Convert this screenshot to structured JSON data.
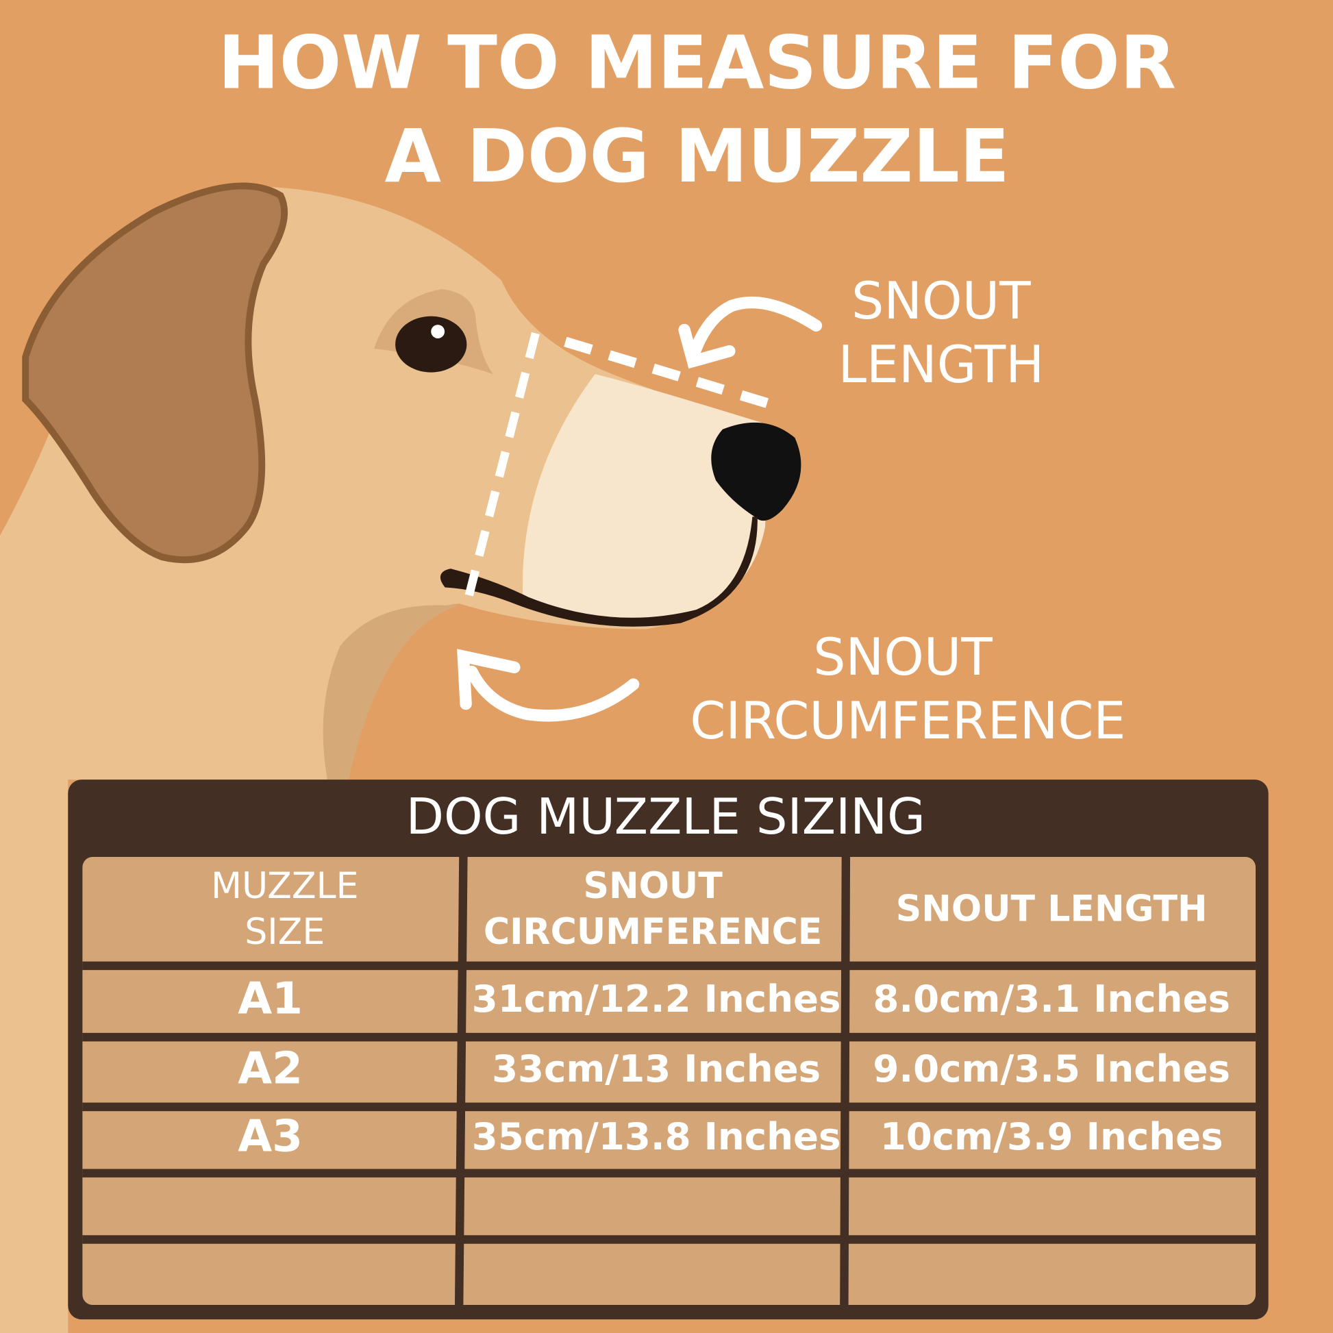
{
  "title": [
    "HOW TO MEASURE FOR",
    "A DOG MUZZLE"
  ],
  "labels": {
    "snout_length": [
      "SNOUT",
      "LENGTH"
    ],
    "snout_circumference": [
      "SNOUT",
      "CIRCUMFERENCE"
    ]
  },
  "table": {
    "title": "DOG MUZZLE SIZING",
    "header": [
      [
        "MUZZLE",
        "SIZE"
      ],
      [
        "SNOUT",
        "CIRCUMFERENCE"
      ],
      [
        "SNOUT LENGTH"
      ]
    ],
    "rows": [
      [
        "A1",
        "31cm/12.2 Inches",
        "8.0cm/3.1 Inches"
      ],
      [
        "A2",
        "33cm/13 Inches",
        "9.0cm/3.5 Inches"
      ],
      [
        "A3",
        "35cm/13.8 Inches",
        "10cm/3.9 Inches"
      ]
    ]
  }
}
